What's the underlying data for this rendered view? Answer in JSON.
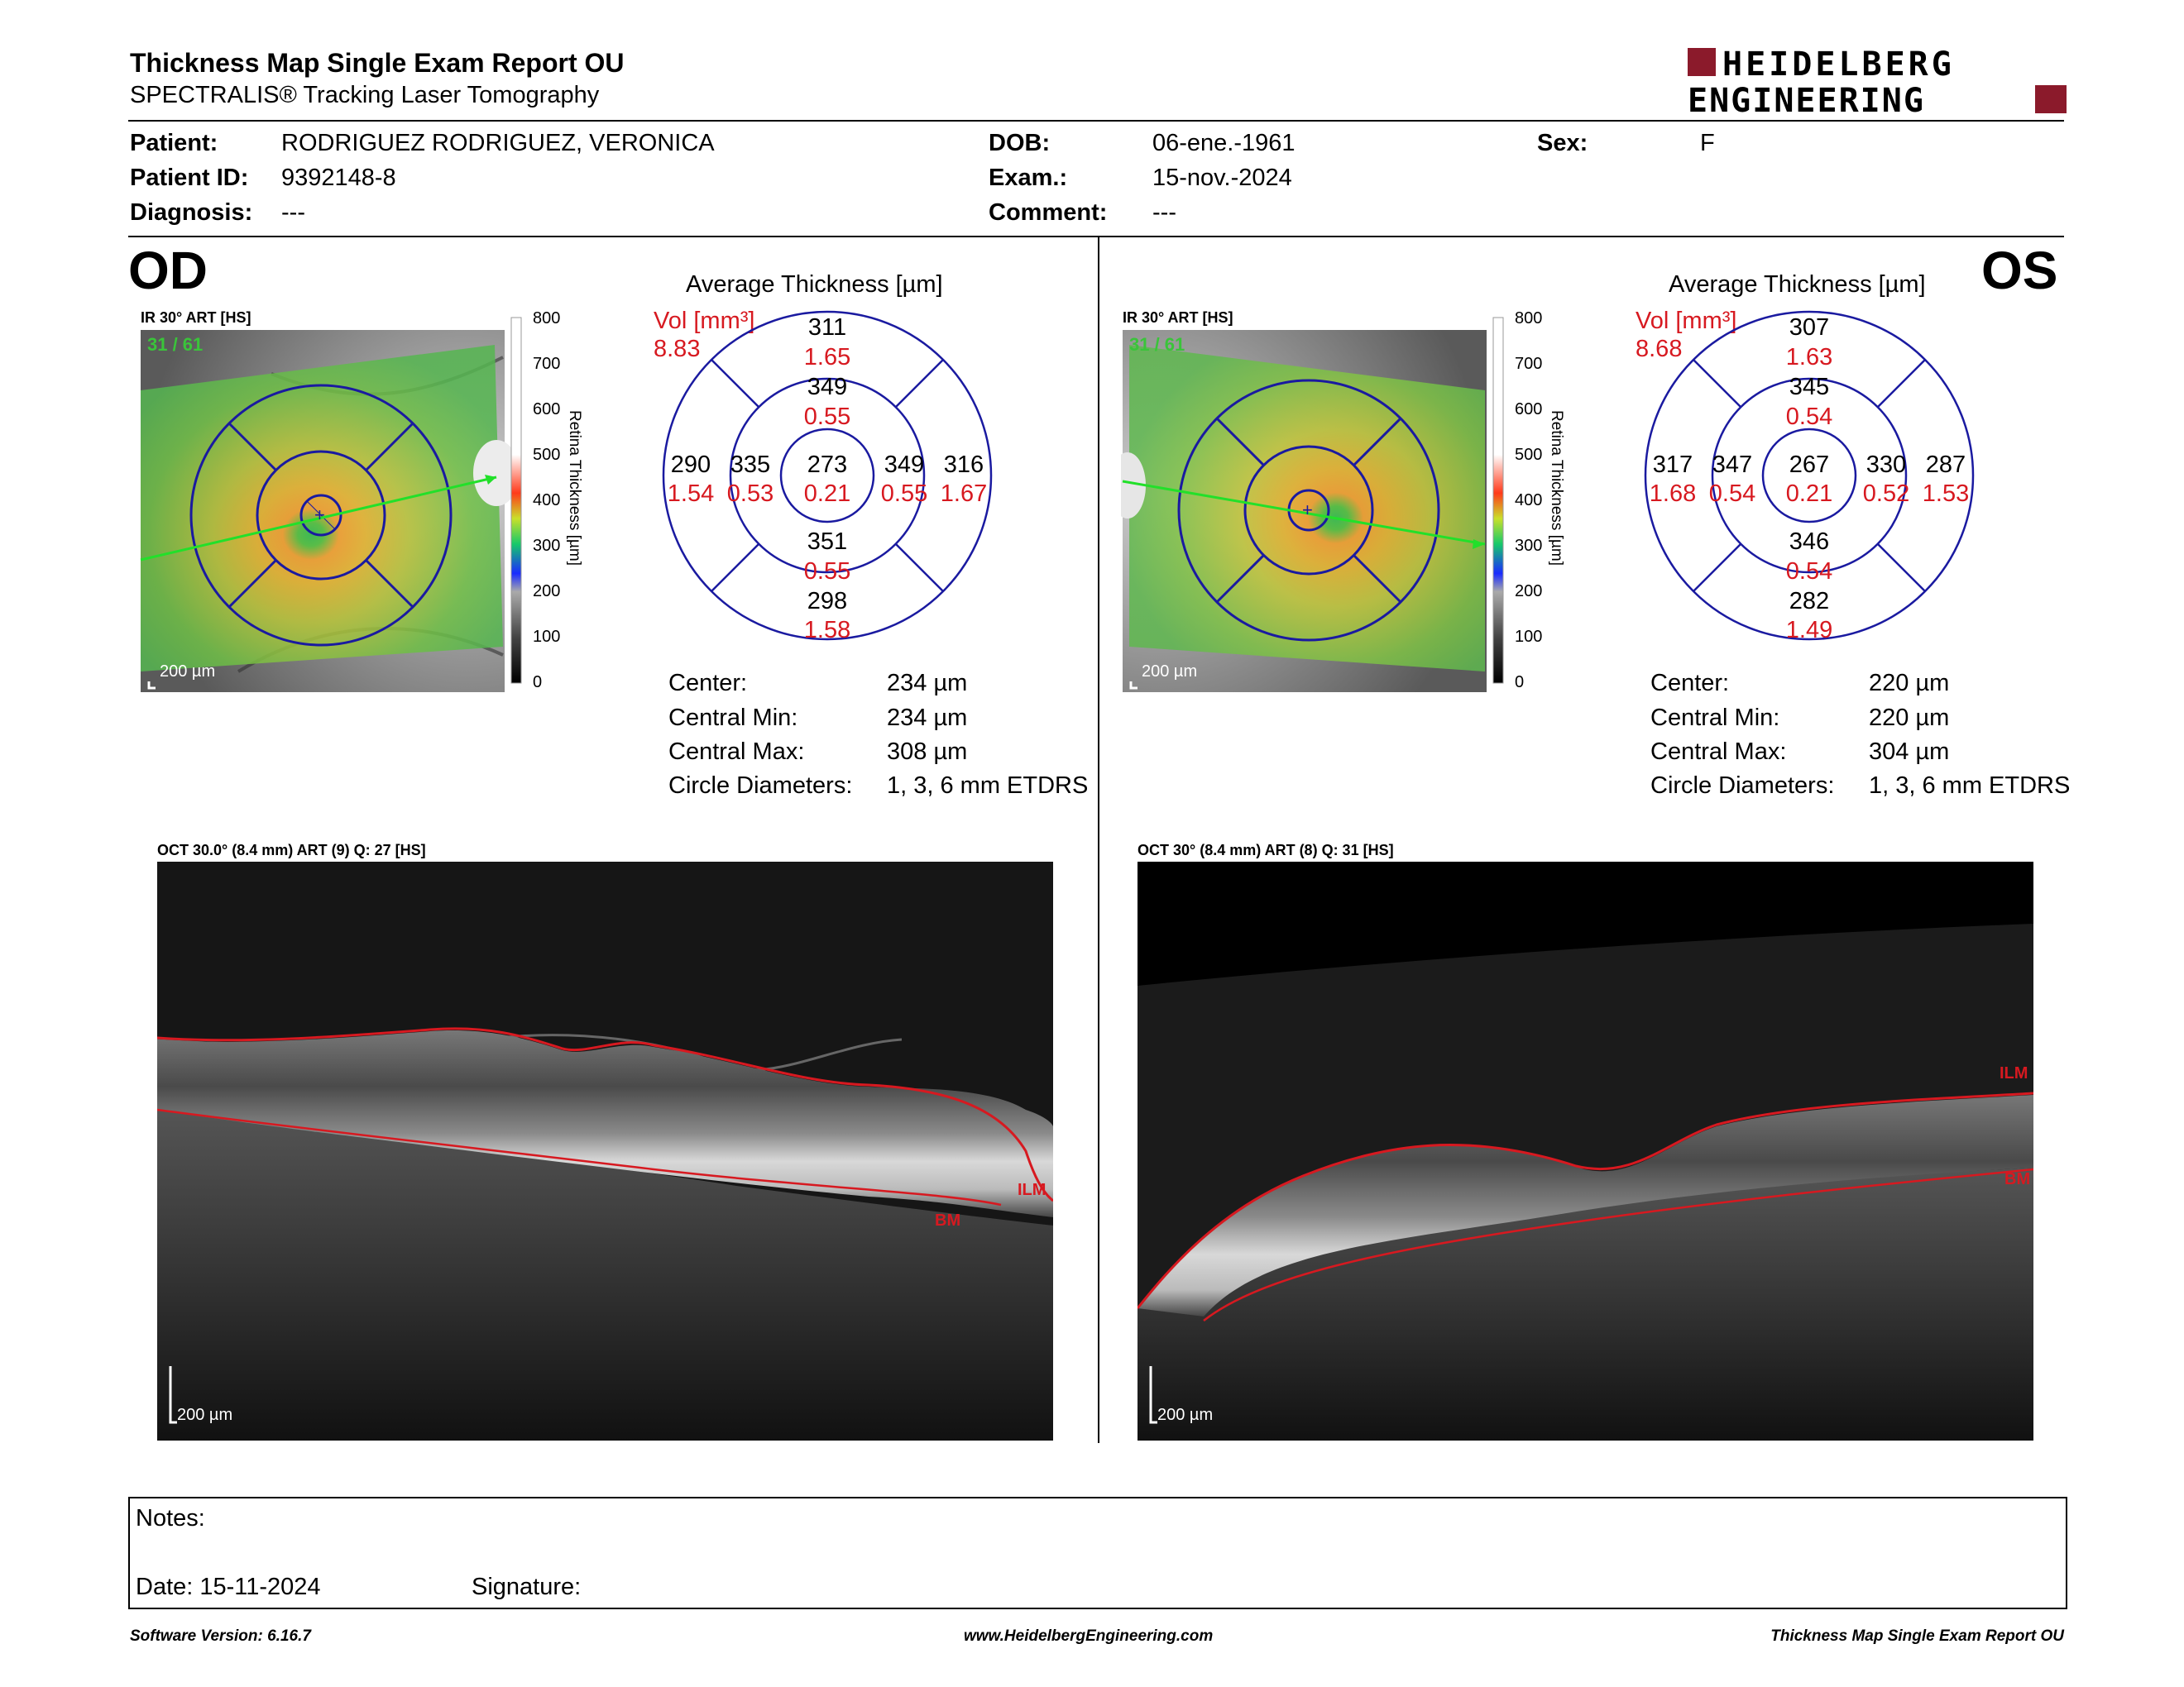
{
  "header": {
    "title": "Thickness Map Single Exam Report OU",
    "subtitle": "SPECTRALIS® Tracking Laser Tomography",
    "logo_line1": "HEIDELBERG",
    "logo_line2": "ENGINEERING"
  },
  "patient": {
    "patient_label": "Patient:",
    "patient_value": "RODRIGUEZ RODRIGUEZ, VERONICA",
    "id_label": "Patient ID:",
    "id_value": "9392148-8",
    "diagnosis_label": "Diagnosis:",
    "diagnosis_value": "---",
    "dob_label": "DOB:",
    "dob_value": "06-ene.-1961",
    "exam_label": "Exam.:",
    "exam_value": "15-nov.-2024",
    "comment_label": "Comment:",
    "comment_value": "---",
    "sex_label": "Sex:",
    "sex_value": "F"
  },
  "od": {
    "eye": "OD",
    "ir_label": "IR 30° ART [HS]",
    "frames": "31 / 61",
    "scale_bar": "200 µm",
    "colorbar_ticks": [
      "800",
      "700",
      "600",
      "500",
      "400",
      "300",
      "200",
      "100",
      "0"
    ],
    "colorbar_title": "Retina  Thickness [µm]",
    "avg_title": "Average Thickness [µm]",
    "vol_label": "Vol [mm³]",
    "vol_total": "8.83",
    "sectors": {
      "outer_top": {
        "t": "311",
        "v": "1.65"
      },
      "inner_top": {
        "t": "349",
        "v": "0.55"
      },
      "center": {
        "t": "273",
        "v": "0.21"
      },
      "inner_bottom": {
        "t": "351",
        "v": "0.55"
      },
      "outer_bottom": {
        "t": "298",
        "v": "1.58"
      },
      "outer_left": {
        "t": "290",
        "v": "1.54"
      },
      "inner_left": {
        "t": "335",
        "v": "0.53"
      },
      "inner_right": {
        "t": "349",
        "v": "0.55"
      },
      "outer_right": {
        "t": "316",
        "v": "1.67"
      }
    },
    "stats": [
      {
        "label": "Center:",
        "value": "234 µm"
      },
      {
        "label": "Central Min:",
        "value": "234 µm"
      },
      {
        "label": "Central Max:",
        "value": "308 µm"
      },
      {
        "label": "Circle Diameters:",
        "value": "1, 3, 6 mm ETDRS"
      }
    ],
    "oct_label": "OCT 30.0° (8.4 mm) ART (9) Q: 27 [HS]",
    "oct_scale": "200 µm",
    "ilm": "ILM",
    "bm": "BM"
  },
  "os": {
    "eye": "OS",
    "ir_label": "IR 30° ART [HS]",
    "frames": "31 / 61",
    "scale_bar": "200 µm",
    "colorbar_ticks": [
      "800",
      "700",
      "600",
      "500",
      "400",
      "300",
      "200",
      "100",
      "0"
    ],
    "colorbar_title": "Retina  Thickness [µm]",
    "avg_title": "Average Thickness [µm]",
    "vol_label": "Vol [mm³]",
    "vol_total": "8.68",
    "sectors": {
      "outer_top": {
        "t": "307",
        "v": "1.63"
      },
      "inner_top": {
        "t": "345",
        "v": "0.54"
      },
      "center": {
        "t": "267",
        "v": "0.21"
      },
      "inner_bottom": {
        "t": "346",
        "v": "0.54"
      },
      "outer_bottom": {
        "t": "282",
        "v": "1.49"
      },
      "outer_left": {
        "t": "317",
        "v": "1.68"
      },
      "inner_left": {
        "t": "347",
        "v": "0.54"
      },
      "inner_right": {
        "t": "330",
        "v": "0.52"
      },
      "outer_right": {
        "t": "287",
        "v": "1.53"
      }
    },
    "stats": [
      {
        "label": "Center:",
        "value": "220 µm"
      },
      {
        "label": "Central Min:",
        "value": "220 µm"
      },
      {
        "label": "Central Max:",
        "value": "304 µm"
      },
      {
        "label": "Circle Diameters:",
        "value": "1, 3, 6 mm ETDRS"
      }
    ],
    "oct_label": "OCT 30° (8.4 mm) ART (8) Q: 31 [HS]",
    "oct_scale": "200 µm",
    "ilm": "ILM",
    "bm": "BM"
  },
  "notes": {
    "notes_label": "Notes:",
    "date_label": "Date: 15-11-2024",
    "signature_label": "Signature:"
  },
  "footer": {
    "software": "Software Version: 6.16.7",
    "website": "www.HeidelbergEngineering.com",
    "report": "Thickness Map Single Exam Report OU"
  },
  "colors": {
    "red": "#d71920",
    "blue": "#1a1aa0",
    "logo_red": "#8b1a2b"
  }
}
